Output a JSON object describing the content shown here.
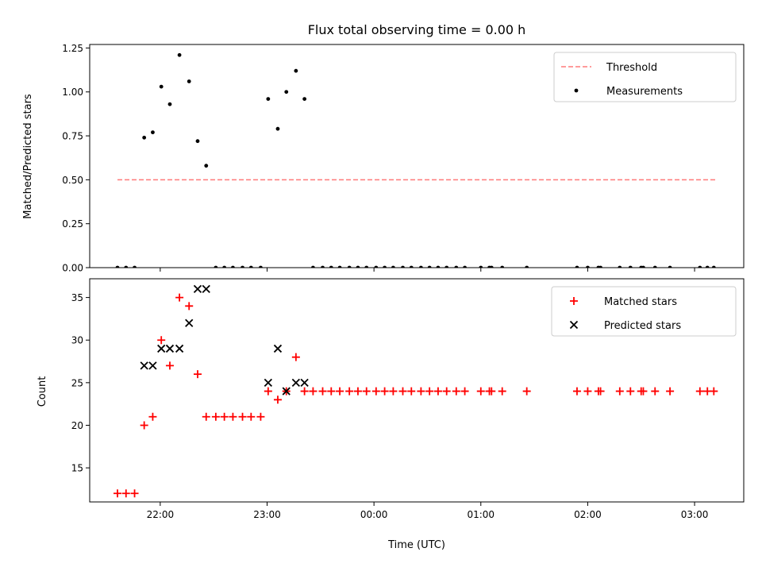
{
  "chart_data": {
    "type": "scatter",
    "title": "Flux total observing time = 0.00 h",
    "xlabel": "Time (UTC)",
    "x_tick_labels": [
      "22:00",
      "23:00",
      "00:00",
      "01:00",
      "02:00",
      "03:00"
    ],
    "x_tick_hours": [
      22,
      23,
      24,
      25,
      26,
      27
    ],
    "xlim_hours": [
      21.34,
      27.46
    ],
    "panels": [
      {
        "ylabel": "Matched/Predicted stars",
        "ylim": [
          0,
          1.27
        ],
        "y_ticks": [
          0,
          0.25,
          0.5,
          0.75,
          1.0,
          1.25
        ],
        "y_tick_labels": [
          "0.00",
          "0.25",
          "0.50",
          "0.75",
          "1.00",
          "1.25"
        ],
        "legend_position": "upper right",
        "threshold": {
          "name": "Threshold",
          "value": 0.5,
          "x_range": [
            21.6,
            27.2
          ],
          "color": "#ff7a7a"
        },
        "series": [
          {
            "name": "Measurements",
            "marker": "dot",
            "color": "#000000",
            "points": [
              [
                21.6,
                0.0
              ],
              [
                21.68,
                0.0
              ],
              [
                21.76,
                0.0
              ],
              [
                21.85,
                0.74
              ],
              [
                21.93,
                0.77
              ],
              [
                22.01,
                1.03
              ],
              [
                22.09,
                0.93
              ],
              [
                22.18,
                1.21
              ],
              [
                22.27,
                1.06
              ],
              [
                22.35,
                0.72
              ],
              [
                22.43,
                0.58
              ],
              [
                22.52,
                0.0
              ],
              [
                22.6,
                0.0
              ],
              [
                22.68,
                0.0
              ],
              [
                22.77,
                0.0
              ],
              [
                22.85,
                0.0
              ],
              [
                22.94,
                0.0
              ],
              [
                23.01,
                0.96
              ],
              [
                23.1,
                0.79
              ],
              [
                23.18,
                1.0
              ],
              [
                23.27,
                1.12
              ],
              [
                23.35,
                0.96
              ],
              [
                23.43,
                0.0
              ],
              [
                23.52,
                0.0
              ],
              [
                23.6,
                0.0
              ],
              [
                23.68,
                0.0
              ],
              [
                23.77,
                0.0
              ],
              [
                23.85,
                0.0
              ],
              [
                23.93,
                0.0
              ],
              [
                24.02,
                0.0
              ],
              [
                24.1,
                0.0
              ],
              [
                24.18,
                0.0
              ],
              [
                24.27,
                0.0
              ],
              [
                24.35,
                0.0
              ],
              [
                24.44,
                0.0
              ],
              [
                24.52,
                0.0
              ],
              [
                24.6,
                0.0
              ],
              [
                24.68,
                0.0
              ],
              [
                24.77,
                0.0
              ],
              [
                24.85,
                0.0
              ],
              [
                25.0,
                0.0
              ],
              [
                25.08,
                0.0
              ],
              [
                25.1,
                0.0
              ],
              [
                25.2,
                0.0
              ],
              [
                25.43,
                0.0
              ],
              [
                25.9,
                0.0
              ],
              [
                26.0,
                0.0
              ],
              [
                26.1,
                0.0
              ],
              [
                26.12,
                0.0
              ],
              [
                26.3,
                0.0
              ],
              [
                26.4,
                0.0
              ],
              [
                26.5,
                0.0
              ],
              [
                26.52,
                0.0
              ],
              [
                26.63,
                0.0
              ],
              [
                26.77,
                0.0
              ],
              [
                27.05,
                0.0
              ],
              [
                27.12,
                0.0
              ],
              [
                27.18,
                0.0
              ]
            ]
          }
        ]
      },
      {
        "ylabel": "Count",
        "ylim": [
          11,
          37.2
        ],
        "y_ticks": [
          15,
          20,
          25,
          30,
          35
        ],
        "y_tick_labels": [
          "15",
          "20",
          "25",
          "30",
          "35"
        ],
        "legend_position": "upper right",
        "series": [
          {
            "name": "Matched stars",
            "marker": "plus",
            "color": "#ff0000",
            "points": [
              [
                21.6,
                12
              ],
              [
                21.68,
                12
              ],
              [
                21.76,
                12
              ],
              [
                21.85,
                20
              ],
              [
                21.93,
                21
              ],
              [
                22.01,
                30
              ],
              [
                22.09,
                27
              ],
              [
                22.18,
                35
              ],
              [
                22.27,
                34
              ],
              [
                22.35,
                26
              ],
              [
                22.43,
                21
              ],
              [
                22.52,
                21
              ],
              [
                22.6,
                21
              ],
              [
                22.68,
                21
              ],
              [
                22.77,
                21
              ],
              [
                22.85,
                21
              ],
              [
                22.94,
                21
              ],
              [
                23.01,
                24
              ],
              [
                23.1,
                23
              ],
              [
                23.18,
                24
              ],
              [
                23.27,
                28
              ],
              [
                23.35,
                24
              ],
              [
                23.43,
                24
              ],
              [
                23.52,
                24
              ],
              [
                23.6,
                24
              ],
              [
                23.68,
                24
              ],
              [
                23.77,
                24
              ],
              [
                23.85,
                24
              ],
              [
                23.93,
                24
              ],
              [
                24.02,
                24
              ],
              [
                24.1,
                24
              ],
              [
                24.18,
                24
              ],
              [
                24.27,
                24
              ],
              [
                24.35,
                24
              ],
              [
                24.44,
                24
              ],
              [
                24.52,
                24
              ],
              [
                24.6,
                24
              ],
              [
                24.68,
                24
              ],
              [
                24.77,
                24
              ],
              [
                24.85,
                24
              ],
              [
                25.0,
                24
              ],
              [
                25.08,
                24
              ],
              [
                25.1,
                24
              ],
              [
                25.2,
                24
              ],
              [
                25.43,
                24
              ],
              [
                25.9,
                24
              ],
              [
                26.0,
                24
              ],
              [
                26.1,
                24
              ],
              [
                26.12,
                24
              ],
              [
                26.3,
                24
              ],
              [
                26.4,
                24
              ],
              [
                26.5,
                24
              ],
              [
                26.52,
                24
              ],
              [
                26.63,
                24
              ],
              [
                26.77,
                24
              ],
              [
                27.05,
                24
              ],
              [
                27.12,
                24
              ],
              [
                27.18,
                24
              ]
            ]
          },
          {
            "name": "Predicted stars",
            "marker": "x",
            "color": "#000000",
            "points": [
              [
                21.85,
                27
              ],
              [
                21.93,
                27
              ],
              [
                22.01,
                29
              ],
              [
                22.09,
                29
              ],
              [
                22.18,
                29
              ],
              [
                22.27,
                32
              ],
              [
                22.35,
                36
              ],
              [
                22.43,
                36
              ],
              [
                23.01,
                25
              ],
              [
                23.1,
                29
              ],
              [
                23.18,
                24
              ],
              [
                23.27,
                25
              ],
              [
                23.35,
                25
              ]
            ]
          }
        ]
      }
    ]
  }
}
